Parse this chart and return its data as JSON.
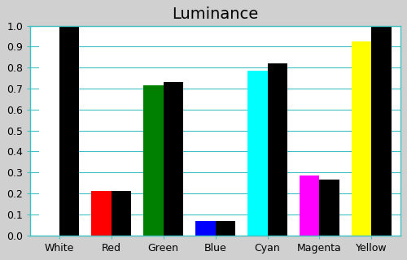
{
  "title": "Luminance",
  "categories": [
    "White",
    "Red",
    "Green",
    "Blue",
    "Cyan",
    "Magenta",
    "Yellow"
  ],
  "measured": [
    1.0,
    0.21,
    0.715,
    0.07,
    0.785,
    0.285,
    0.925
  ],
  "reference": [
    1.0,
    0.21,
    0.73,
    0.07,
    0.82,
    0.265,
    1.0
  ],
  "bar_colors": [
    "#ffffff",
    "#ff0000",
    "#008000",
    "#0000ff",
    "#00ffff",
    "#ff00ff",
    "#ffff00"
  ],
  "ref_color": "#000000",
  "figure_bg_color": "#d0d0d0",
  "plot_bg_color": "#ffffff",
  "grid_color": "#40c0c0",
  "ylim": [
    0.0,
    1.0
  ],
  "yticks": [
    0.0,
    0.1,
    0.2,
    0.3,
    0.4,
    0.5,
    0.6,
    0.7,
    0.8,
    0.9,
    1.0
  ],
  "bar_width": 0.38,
  "title_fontsize": 14,
  "tick_fontsize": 9
}
